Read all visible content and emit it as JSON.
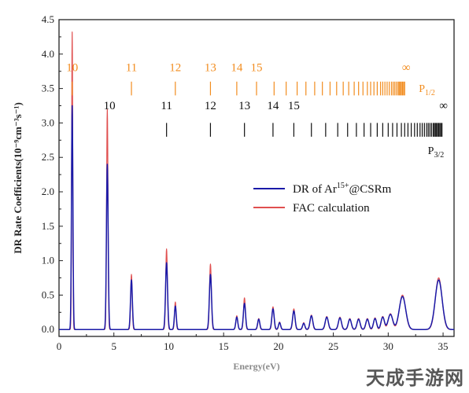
{
  "chart_data": {
    "type": "line",
    "title": "",
    "xlabel": "Energy(eV)",
    "ylabel": "DR Rate Coefficients(10⁻⁹cm⁻³s⁻¹)",
    "xlim": [
      0,
      36
    ],
    "ylim": [
      -0.1,
      4.5
    ],
    "x_ticks": [
      0,
      5,
      10,
      15,
      20,
      25,
      30,
      35
    ],
    "y_ticks": [
      0.0,
      0.5,
      1.0,
      1.5,
      2.0,
      2.5,
      3.0,
      3.5,
      4.0,
      4.5
    ],
    "legend": {
      "position": "center-right",
      "entries": [
        {
          "label_main": "DR of Ar",
          "label_sup": "15+",
          "label_suffix": "@CSRm",
          "color": "#1a1aa8"
        },
        {
          "label_main": "FAC calculation",
          "label_sup": "",
          "label_suffix": "",
          "color": "#e05050"
        }
      ]
    },
    "series": [
      {
        "name": "DR of Ar15+@CSRm",
        "color": "#1a1aa8",
        "peaks": [
          {
            "x": 1.2,
            "y": 3.25,
            "w": 0.09
          },
          {
            "x": 4.4,
            "y": 2.4,
            "w": 0.11
          },
          {
            "x": 6.6,
            "y": 0.72,
            "w": 0.12
          },
          {
            "x": 9.8,
            "y": 0.97,
            "w": 0.13
          },
          {
            "x": 10.6,
            "y": 0.34,
            "w": 0.12
          },
          {
            "x": 13.8,
            "y": 0.8,
            "w": 0.14
          },
          {
            "x": 16.2,
            "y": 0.18,
            "w": 0.13
          },
          {
            "x": 16.9,
            "y": 0.38,
            "w": 0.14
          },
          {
            "x": 18.2,
            "y": 0.15,
            "w": 0.14
          },
          {
            "x": 19.5,
            "y": 0.3,
            "w": 0.15
          },
          {
            "x": 20.1,
            "y": 0.1,
            "w": 0.14
          },
          {
            "x": 21.4,
            "y": 0.27,
            "w": 0.16
          },
          {
            "x": 22.3,
            "y": 0.09,
            "w": 0.15
          },
          {
            "x": 23.0,
            "y": 0.2,
            "w": 0.18
          },
          {
            "x": 24.4,
            "y": 0.18,
            "w": 0.2
          },
          {
            "x": 25.6,
            "y": 0.17,
            "w": 0.2
          },
          {
            "x": 26.5,
            "y": 0.15,
            "w": 0.2
          },
          {
            "x": 27.3,
            "y": 0.15,
            "w": 0.2
          },
          {
            "x": 28.1,
            "y": 0.15,
            "w": 0.2
          },
          {
            "x": 28.8,
            "y": 0.16,
            "w": 0.2
          },
          {
            "x": 29.5,
            "y": 0.18,
            "w": 0.22
          },
          {
            "x": 30.2,
            "y": 0.22,
            "w": 0.3
          },
          {
            "x": 31.3,
            "y": 0.48,
            "w": 0.42
          },
          {
            "x": 34.6,
            "y": 0.72,
            "w": 0.45
          }
        ]
      },
      {
        "name": "FAC calculation",
        "color": "#e05050",
        "peaks": [
          {
            "x": 1.2,
            "y": 4.32,
            "w": 0.07
          },
          {
            "x": 4.4,
            "y": 3.2,
            "w": 0.09
          },
          {
            "x": 6.6,
            "y": 0.8,
            "w": 0.1
          },
          {
            "x": 9.8,
            "y": 1.17,
            "w": 0.11
          },
          {
            "x": 10.6,
            "y": 0.4,
            "w": 0.1
          },
          {
            "x": 13.8,
            "y": 0.95,
            "w": 0.12
          },
          {
            "x": 16.2,
            "y": 0.2,
            "w": 0.12
          },
          {
            "x": 16.9,
            "y": 0.46,
            "w": 0.12
          },
          {
            "x": 18.2,
            "y": 0.16,
            "w": 0.12
          },
          {
            "x": 19.5,
            "y": 0.33,
            "w": 0.13
          },
          {
            "x": 20.1,
            "y": 0.11,
            "w": 0.12
          },
          {
            "x": 21.4,
            "y": 0.3,
            "w": 0.14
          },
          {
            "x": 22.3,
            "y": 0.1,
            "w": 0.13
          },
          {
            "x": 23.0,
            "y": 0.21,
            "w": 0.16
          },
          {
            "x": 24.4,
            "y": 0.19,
            "w": 0.18
          },
          {
            "x": 25.6,
            "y": 0.18,
            "w": 0.18
          },
          {
            "x": 26.5,
            "y": 0.16,
            "w": 0.18
          },
          {
            "x": 27.3,
            "y": 0.16,
            "w": 0.18
          },
          {
            "x": 28.1,
            "y": 0.16,
            "w": 0.18
          },
          {
            "x": 28.8,
            "y": 0.17,
            "w": 0.18
          },
          {
            "x": 29.5,
            "y": 0.19,
            "w": 0.2
          },
          {
            "x": 30.2,
            "y": 0.23,
            "w": 0.28
          },
          {
            "x": 31.3,
            "y": 0.5,
            "w": 0.4
          },
          {
            "x": 34.6,
            "y": 0.75,
            "w": 0.43
          }
        ]
      }
    ],
    "rydberg_series": [
      {
        "state_main": "P",
        "state_sub": "1/2",
        "color": "#f28c1e",
        "label_y": 3.75,
        "tick_top": 3.6,
        "tick_bottom": 3.4,
        "limit_x": 31.5,
        "limit_label": "∞",
        "labels": [
          {
            "n": "10",
            "x": 1.2
          },
          {
            "n": "11",
            "x": 6.6
          },
          {
            "n": "12",
            "x": 10.6
          },
          {
            "n": "13",
            "x": 13.8
          },
          {
            "n": "14",
            "x": 16.2
          },
          {
            "n": "15",
            "x": 18.0
          }
        ],
        "ticks": [
          1.2,
          6.6,
          10.6,
          13.8,
          16.2,
          18.0,
          19.6,
          20.7,
          21.7,
          22.5,
          23.3,
          24.0,
          24.7,
          25.3,
          25.9,
          26.4,
          26.9,
          27.3,
          27.7,
          28.1,
          28.4,
          28.7,
          29.0,
          29.3,
          29.5,
          29.7,
          29.9,
          30.1,
          30.3,
          30.45,
          30.6,
          30.75,
          30.9,
          31.0,
          31.1,
          31.2,
          31.3,
          31.4,
          31.5
        ]
      },
      {
        "state_main": "P",
        "state_sub": "3/2",
        "color": "#111111",
        "label_y": 3.2,
        "tick_top": 3.0,
        "tick_bottom": 2.8,
        "limit_x": 34.9,
        "limit_label": "∞",
        "labels": [
          {
            "n": "10",
            "x": 4.6
          },
          {
            "n": "11",
            "x": 9.8
          },
          {
            "n": "12",
            "x": 13.8
          },
          {
            "n": "13",
            "x": 16.9
          },
          {
            "n": "14",
            "x": 19.5
          },
          {
            "n": "15",
            "x": 21.4
          }
        ],
        "ticks": [
          9.8,
          13.8,
          16.9,
          19.5,
          21.4,
          23.0,
          24.3,
          25.4,
          26.3,
          27.1,
          27.8,
          28.4,
          29.0,
          29.5,
          30.0,
          30.4,
          30.8,
          31.2,
          31.5,
          31.8,
          32.1,
          32.4,
          32.65,
          32.9,
          33.1,
          33.3,
          33.5,
          33.65,
          33.8,
          33.95,
          34.1,
          34.2,
          34.3,
          34.4,
          34.5,
          34.6,
          34.7,
          34.8,
          34.9
        ]
      }
    ]
  },
  "watermark": "天成手游网"
}
